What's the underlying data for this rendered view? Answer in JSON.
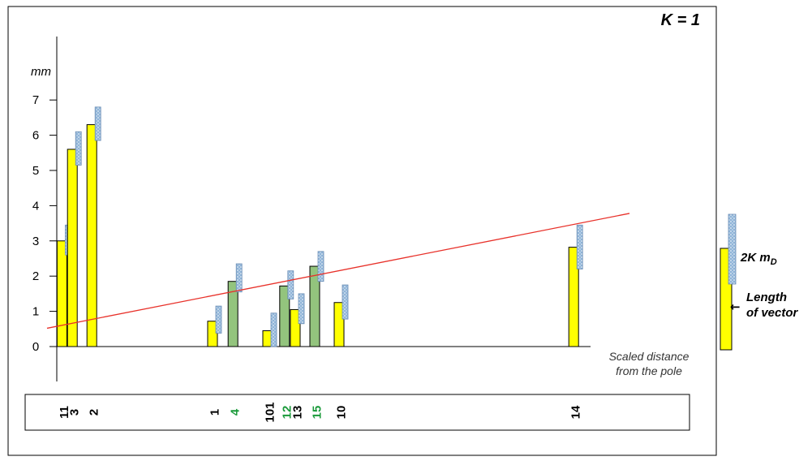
{
  "chart_data": {
    "type": "bar",
    "title": "K = 1",
    "ylabel": "mm",
    "xlabel_lines": [
      "Scaled distance",
      "from the pole"
    ],
    "ylim": [
      0,
      7
    ],
    "yticks": [
      "0",
      "1",
      "2",
      "3",
      "4",
      "5",
      "6",
      "7"
    ],
    "series_colors": {
      "yellow": "#ffff00",
      "green": "#93c47d",
      "hatch": "#8fb4d8",
      "trend": "#e8312a"
    },
    "bars": [
      {
        "label": "11",
        "color": "yellow",
        "x": 0.16,
        "length": 3.0,
        "top": 3.45,
        "bottom": 2.6
      },
      {
        "label": "3",
        "color": "yellow",
        "x": 0.48,
        "length": 5.6,
        "top": 6.1,
        "bottom": 5.15
      },
      {
        "label": "2",
        "color": "yellow",
        "x": 1.08,
        "length": 6.3,
        "top": 6.8,
        "bottom": 5.85
      },
      {
        "label": "1",
        "color": "yellow",
        "x": 4.8,
        "length": 0.72,
        "top": 1.15,
        "bottom": 0.38
      },
      {
        "label": "4",
        "color": "green",
        "x": 5.43,
        "length": 1.85,
        "top": 2.35,
        "bottom": 1.55
      },
      {
        "label": "101",
        "color": "yellow",
        "x": 6.5,
        "length": 0.45,
        "top": 0.95,
        "bottom": 0.0
      },
      {
        "label": "12",
        "color": "green",
        "x": 7.02,
        "length": 1.72,
        "top": 2.15,
        "bottom": 1.35
      },
      {
        "label": "13",
        "color": "yellow",
        "x": 7.35,
        "length": 1.05,
        "top": 1.5,
        "bottom": 0.65
      },
      {
        "label": "15",
        "color": "green",
        "x": 7.95,
        "length": 2.28,
        "top": 2.7,
        "bottom": 1.85
      },
      {
        "label": "10",
        "color": "yellow",
        "x": 8.7,
        "length": 1.25,
        "top": 1.75,
        "bottom": 0.78
      },
      {
        "label": "14",
        "color": "yellow",
        "x": 15.93,
        "length": 2.82,
        "top": 3.45,
        "bottom": 2.2
      }
    ],
    "trend_line": {
      "x0": -0.3,
      "y0": 0.52,
      "x1": 17.65,
      "y1": 3.78
    },
    "bar_label_colors": {
      "11": "#000000",
      "3": "#000000",
      "2": "#000000",
      "1": "#000000",
      "4": "#1a9a3a",
      "101": "#000000",
      "12": "#1a9a3a",
      "13": "#000000",
      "15": "#1a9a3a",
      "10": "#000000",
      "14": "#000000"
    },
    "legend": {
      "hatch_label": "2K m",
      "hatch_subscript": "D",
      "length_label_lines": [
        "Length",
        "of vector"
      ],
      "arrow": "←"
    }
  }
}
